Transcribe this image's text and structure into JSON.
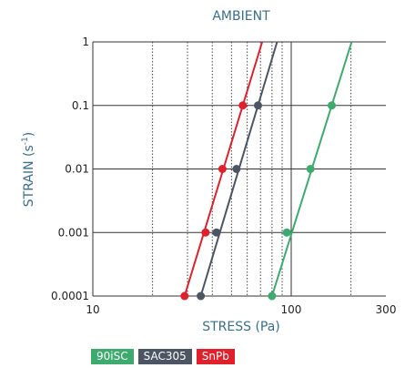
{
  "chart_data": {
    "type": "line",
    "title": "AMBIENT",
    "xlabel": "STRESS (Pa)",
    "ylabel_main": "STRAIN (s",
    "ylabel_sup": "-1",
    "ylabel_end": ")",
    "x_scale": "log",
    "y_scale": "log",
    "xlim": [
      10,
      300
    ],
    "ylim": [
      0.0001,
      1
    ],
    "x_ticks": [
      10,
      100,
      300
    ],
    "x_tick_labels": [
      "10",
      "100",
      "300"
    ],
    "y_ticks": [
      0.0001,
      0.001,
      0.01,
      0.1,
      1
    ],
    "y_tick_labels": [
      "0.0001",
      "0.001",
      "0.01",
      "0.1",
      "1"
    ],
    "grid": true,
    "legend_position": "bottom-left",
    "series": [
      {
        "name": "90iSC",
        "color": "#3daa6e",
        "x": [
          80,
          95,
          125,
          160
        ],
        "y": [
          0.0001,
          0.001,
          0.01,
          0.1
        ]
      },
      {
        "name": "SAC305",
        "color": "#4b5563",
        "x": [
          35,
          42,
          53,
          68
        ],
        "y": [
          0.0001,
          0.001,
          0.01,
          0.1
        ]
      },
      {
        "name": "SnPb",
        "color": "#e0202b",
        "x": [
          29,
          37,
          45,
          57
        ],
        "y": [
          0.0001,
          0.001,
          0.01,
          0.1
        ]
      }
    ]
  }
}
